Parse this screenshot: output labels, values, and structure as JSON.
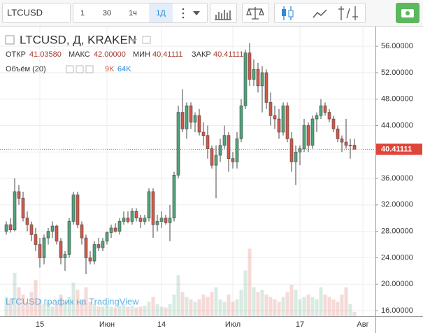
{
  "toolbar": {
    "symbol": "LTCUSD",
    "intervals": [
      "1",
      "30",
      "1ч",
      "1Д"
    ]
  },
  "chart_data": {
    "type": "candlestick",
    "title": "LTCUSD, Д, KRAKEN",
    "ohlc_names": [
      "ОТКР",
      "МАКС",
      "МИН",
      "ЗАКР"
    ],
    "ohlc_values": [
      {
        "value": 41.0358,
        "label": "41.03580"
      },
      {
        "value": 42,
        "label": "42.00000"
      },
      {
        "value": 40.41111,
        "label": "40.41111"
      },
      {
        "value": 40.41111,
        "label": "40.41111"
      }
    ],
    "volume_name": "Объём (20)",
    "volume_value": {
      "value": 9000,
      "label": "9K"
    },
    "volume_ma": {
      "value": 64000,
      "label": "64K"
    },
    "categories": [
      null,
      null,
      null,
      null,
      null,
      null,
      null,
      null,
      "15",
      null,
      null,
      null,
      null,
      null,
      null,
      null,
      null,
      null,
      null,
      null,
      null,
      null,
      null,
      null,
      "Июн",
      null,
      null,
      null,
      null,
      null,
      null,
      null,
      null,
      null,
      null,
      null,
      null,
      "14",
      null,
      null,
      null,
      null,
      null,
      null,
      null,
      null,
      null,
      null,
      null,
      null,
      null,
      null,
      null,
      null,
      "Июл",
      null,
      null,
      null,
      null,
      null,
      null,
      null,
      null,
      null,
      null,
      null,
      null,
      null,
      null,
      null,
      "17",
      null,
      null,
      null,
      null,
      null,
      null,
      null,
      null,
      null,
      null,
      null,
      null,
      null,
      null,
      "Авг"
    ],
    "open": [
      28,
      29,
      28.2,
      34,
      33,
      30,
      29,
      27.5,
      26,
      24,
      27,
      28,
      28.8,
      26.5,
      24,
      24.5,
      29.5,
      33.5,
      29,
      27,
      24,
      23.5,
      26,
      25.5,
      26.5,
      27.8,
      28.5,
      28,
      29.5,
      30,
      29.5,
      31,
      30,
      29.5,
      30,
      34,
      29,
      29.5,
      30,
      29.3,
      30,
      36.5,
      46,
      43.5,
      47,
      44.5,
      45.5,
      43,
      42.5,
      40.5,
      38,
      39.5,
      41,
      42.5,
      39,
      38.5,
      42,
      47,
      55,
      51,
      52.5,
      50,
      52,
      47.5,
      45.5,
      45,
      43,
      47,
      42,
      38.5,
      40,
      40.5,
      44,
      41,
      45,
      45.5,
      47,
      46,
      45,
      43.5,
      42,
      41.5,
      41,
      41.0358,
      null,
      null
    ],
    "high": [
      29.5,
      30,
      36,
      35,
      34,
      31,
      29.5,
      28.5,
      27,
      27.5,
      28.5,
      29.5,
      29,
      27,
      25,
      30,
      34,
      34,
      29.5,
      27.5,
      25,
      26.5,
      27,
      27,
      28,
      29,
      29.2,
      30,
      31,
      31,
      31.5,
      31.5,
      30.5,
      30.5,
      34.5,
      34.5,
      30.5,
      31,
      30.5,
      32,
      37,
      47,
      49.5,
      47.5,
      47.5,
      46,
      46.5,
      44.5,
      44,
      41,
      41,
      42,
      44,
      43,
      40,
      43,
      48,
      55.5,
      56.5,
      54,
      53.5,
      53,
      52.5,
      49,
      47,
      46.5,
      47.5,
      47.5,
      43,
      41,
      41,
      45,
      44.5,
      45.5,
      46,
      48,
      47.5,
      46.5,
      45.5,
      44,
      42.5,
      45,
      42,
      42,
      null,
      null
    ],
    "low": [
      27.5,
      27.8,
      28,
      32,
      29.5,
      28,
      26.5,
      25,
      22.5,
      23,
      26,
      27,
      26,
      23,
      22,
      24,
      29,
      28.5,
      26,
      21.5,
      23,
      23,
      25,
      25,
      26,
      27,
      27.8,
      27.5,
      29,
      29.2,
      29,
      29.5,
      28.5,
      29,
      29.5,
      27,
      28,
      28.5,
      29,
      26.5,
      29.5,
      36,
      43,
      42,
      43.5,
      43,
      42.5,
      41,
      39,
      37.5,
      33,
      38.5,
      40.5,
      37,
      37.5,
      37.5,
      41.5,
      46.5,
      50,
      50,
      49,
      46,
      46.5,
      44,
      43.5,
      42,
      42.5,
      41.5,
      37,
      35,
      38,
      40,
      40,
      40.5,
      43,
      45,
      45.5,
      44.5,
      43,
      41.5,
      40,
      40.5,
      39,
      40.41111,
      null,
      null
    ],
    "close": [
      29,
      28.2,
      34,
      33,
      30,
      29,
      27.5,
      26,
      24,
      27,
      28,
      28.8,
      26.5,
      24,
      24.5,
      29.5,
      33.5,
      29,
      27,
      24,
      23.5,
      26,
      25.5,
      26.5,
      27.8,
      28.5,
      28,
      29.5,
      30,
      29.5,
      31,
      30,
      29.5,
      30,
      34,
      29,
      29.5,
      30,
      29.3,
      30,
      36.5,
      46,
      43.5,
      47,
      44.5,
      45.5,
      43,
      42.5,
      40.5,
      38,
      39.5,
      41,
      42.5,
      39,
      38.5,
      42,
      47,
      55,
      51,
      52.5,
      50,
      52,
      47.5,
      45.5,
      45,
      43,
      47,
      42,
      38.5,
      40,
      40.5,
      44,
      41,
      45,
      45.5,
      47,
      46,
      45,
      43.5,
      42,
      41.5,
      41,
      41.0358,
      40.41111,
      null,
      null
    ],
    "volume": [
      40000,
      35000,
      90000,
      60000,
      45000,
      30000,
      50000,
      75000,
      35000,
      25000,
      30000,
      20000,
      25000,
      45000,
      30000,
      40000,
      70000,
      55000,
      35000,
      60000,
      30000,
      25000,
      20000,
      20000,
      25000,
      20000,
      18000,
      22000,
      25000,
      20000,
      22000,
      18000,
      20000,
      22000,
      30000,
      40000,
      25000,
      20000,
      18000,
      25000,
      45000,
      85000,
      50000,
      40000,
      35000,
      30000,
      35000,
      45000,
      40000,
      50000,
      60000,
      35000,
      30000,
      45000,
      30000,
      35000,
      55000,
      95000,
      140000,
      60000,
      50000,
      55000,
      45000,
      40000,
      35000,
      30000,
      40000,
      50000,
      65000,
      55000,
      35000,
      40000,
      45000,
      40000,
      35000,
      60000,
      45000,
      40000,
      35000,
      30000,
      45000,
      60000,
      25000,
      9000,
      null,
      null
    ],
    "ylim": [
      15.15,
      58.98
    ],
    "volume_ylim": [
      0,
      600000
    ],
    "yticks": [
      {
        "value": 16,
        "label": "16.00000"
      },
      {
        "value": 20,
        "label": "20.00000"
      },
      {
        "value": 24,
        "label": "24.00000"
      },
      {
        "value": 28,
        "label": "28.00000"
      },
      {
        "value": 32,
        "label": "32.00000"
      },
      {
        "value": 36,
        "label": "36.00000"
      },
      {
        "value": 40,
        "label": "40.00000"
      },
      {
        "value": 44,
        "label": "44.00000"
      },
      {
        "value": 48,
        "label": "48.00000"
      },
      {
        "value": 52,
        "label": "52.00000"
      },
      {
        "value": 56,
        "label": "56.00000"
      }
    ],
    "price_line": {
      "value": 40.41111,
      "label": "40.41111"
    },
    "grid": true,
    "up_color": "#4fa47a",
    "down_color": "#d4574a",
    "watermark": "LTCUSD график на TradingView"
  }
}
